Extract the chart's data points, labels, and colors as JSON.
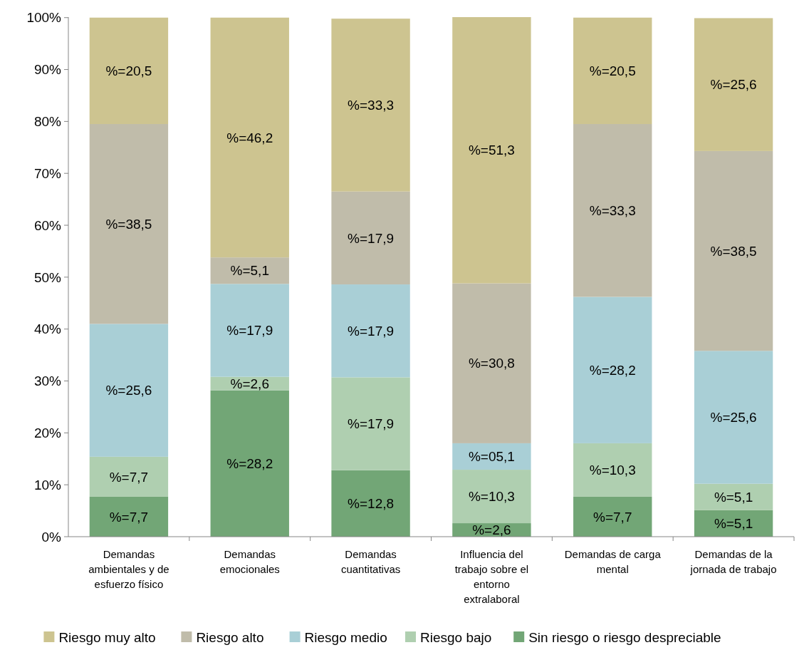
{
  "chart_data": {
    "type": "bar",
    "stacked": true,
    "categories": [
      "Demandas ambientales y de esfuerzo físico",
      "Demandas emocionales",
      "Demandas cuantitativas",
      "Influencia del trabajo sobre el entorno extralaboral",
      "Demandas de carga mental",
      "Demandas de la jornada de trabajo"
    ],
    "series": [
      {
        "name": "Sin riesgo o riesgo despreciable",
        "color": "#72a676",
        "values": [
          7.7,
          28.2,
          12.8,
          2.6,
          7.7,
          5.1
        ],
        "value_labels": [
          "%=7,7",
          "%=28,2",
          "%=12,8",
          "%=2,6",
          "%=7,7",
          "%=5,1"
        ]
      },
      {
        "name": "Riesgo bajo",
        "color": "#afcfb0",
        "values": [
          7.7,
          2.6,
          17.9,
          10.3,
          10.3,
          5.1
        ],
        "value_labels": [
          "%=7,7",
          "%=2,6",
          "%=17,9",
          "%=10,3",
          "%=10,3",
          "%=5,1"
        ]
      },
      {
        "name": "Riesgo medio",
        "color": "#a9cfd6",
        "values": [
          25.6,
          17.9,
          17.9,
          5.1,
          28.2,
          25.6
        ],
        "value_labels": [
          "%=25,6",
          "%=17,9",
          "%=17,9",
          "%=05,1",
          "%=28,2",
          "%=25,6"
        ]
      },
      {
        "name": "Riesgo alto",
        "color": "#c0bcaa",
        "values": [
          38.5,
          5.1,
          17.9,
          30.8,
          33.3,
          38.5
        ],
        "value_labels": [
          "%=38,5",
          "%=5,1",
          "%=17,9",
          "%=30,8",
          "%=33,3",
          "%=38,5"
        ]
      },
      {
        "name": "Riesgo muy alto",
        "color": "#cdc490",
        "values": [
          20.5,
          46.2,
          33.3,
          51.3,
          20.5,
          25.6
        ],
        "value_labels": [
          "%=20,5",
          "%=46,2",
          "%=33,3",
          "%=51,3",
          "%=20,5",
          "%=25,6"
        ]
      }
    ],
    "ylim": [
      0,
      100.1
    ],
    "yticks": [
      {
        "value": 0,
        "label": "0%"
      },
      {
        "value": 10,
        "label": "10%"
      },
      {
        "value": 20,
        "label": "20%"
      },
      {
        "value": 30,
        "label": "30%"
      },
      {
        "value": 40,
        "label": "40%"
      },
      {
        "value": 50,
        "label": "50%"
      },
      {
        "value": 60,
        "label": "60%"
      },
      {
        "value": 70,
        "label": "70%"
      },
      {
        "value": 80,
        "label": "80%"
      },
      {
        "value": 90,
        "label": "90%"
      },
      {
        "value": 100,
        "label": "100%"
      }
    ],
    "grid": false,
    "legend": "bottom"
  }
}
